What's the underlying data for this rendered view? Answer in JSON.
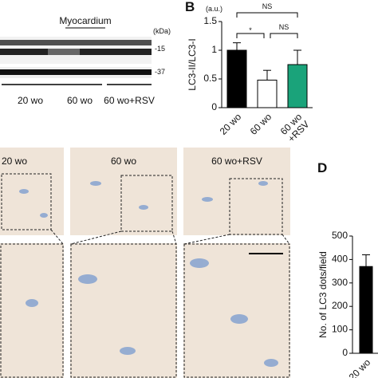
{
  "blot": {
    "tissue": "Myocardium",
    "unit": "(kDa)",
    "markers": [
      "-15",
      "-37"
    ],
    "groups": [
      "20 wo",
      "60 wo",
      "60 wo+RSV"
    ]
  },
  "micrographs": {
    "labels": [
      "20 wo",
      "60 wo",
      "60 wo+RSV"
    ]
  },
  "chart_data": [
    {
      "type": "bar",
      "panel": "B",
      "unit": "(a.u.)",
      "y_label": "LC3-II/LC3-I",
      "categories": [
        "20 wo",
        "60 wo",
        "60 wo\n+RSV"
      ],
      "values": [
        1.0,
        0.48,
        0.75
      ],
      "errors": [
        0.13,
        0.17,
        0.25
      ],
      "colors": [
        "#000000",
        "#ffffff",
        "#1aa37a"
      ],
      "ylim": [
        0,
        1.5
      ],
      "yticks": [
        0,
        0.5,
        1,
        1.5
      ],
      "annotations": [
        "NS",
        "*",
        "NS"
      ]
    },
    {
      "type": "bar",
      "panel": "D",
      "y_label": "No. of LC3 dots/field",
      "categories": [
        "20 wo"
      ],
      "values": [
        370
      ],
      "errors": [
        50
      ],
      "colors": [
        "#000000"
      ],
      "ylim": [
        0,
        500
      ],
      "yticks": [
        0,
        100,
        200,
        300,
        400,
        500
      ]
    }
  ]
}
